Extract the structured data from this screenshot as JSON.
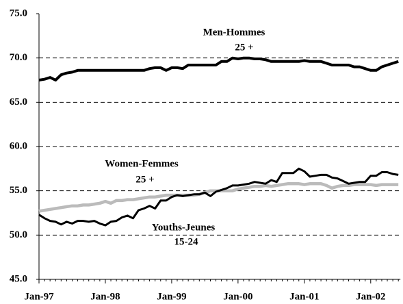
{
  "chart_data": {
    "type": "line",
    "categories": [
      "Jan-97",
      null,
      null,
      null,
      null,
      null,
      null,
      null,
      null,
      null,
      null,
      null,
      "Jan-98",
      null,
      null,
      null,
      null,
      null,
      null,
      null,
      null,
      null,
      null,
      null,
      "Jan-99",
      null,
      null,
      null,
      null,
      null,
      null,
      null,
      null,
      null,
      null,
      null,
      "Jan-00",
      null,
      null,
      null,
      null,
      null,
      null,
      null,
      null,
      null,
      null,
      null,
      "Jan-01",
      null,
      null,
      null,
      null,
      null,
      null,
      null,
      null,
      null,
      null,
      null,
      "Jan-02",
      null,
      null,
      null,
      null,
      null
    ],
    "series": [
      {
        "color": "#000000",
        "values": [
          67.5,
          67.6,
          67.8,
          67.5,
          68.1,
          68.3,
          68.4,
          68.6,
          68.6,
          68.6,
          68.6,
          68.6,
          68.6,
          68.6,
          68.6,
          68.6,
          68.6,
          68.6,
          68.6,
          68.6,
          68.8,
          68.9,
          68.9,
          68.6,
          68.9,
          68.9,
          68.8,
          69.2,
          69.2,
          69.2,
          69.2,
          69.2,
          69.2,
          69.6,
          69.6,
          70.0,
          69.9,
          70.0,
          70.0,
          69.9,
          69.9,
          69.8,
          69.6,
          69.6,
          69.6,
          69.6,
          69.6,
          69.6,
          69.7,
          69.6,
          69.6,
          69.6,
          69.4,
          69.2,
          69.2,
          69.2,
          69.2,
          69.0,
          69.0,
          68.8,
          68.6,
          68.6,
          69.0,
          69.2,
          69.4,
          69.6
        ]
      },
      {
        "color": "#000000",
        "values": [
          52.3,
          51.9,
          51.6,
          51.5,
          51.2,
          51.5,
          51.3,
          51.6,
          51.6,
          51.5,
          51.6,
          51.3,
          51.1,
          51.5,
          51.6,
          52.0,
          52.2,
          51.9,
          52.8,
          53.0,
          53.3,
          53.0,
          53.9,
          53.9,
          54.3,
          54.5,
          54.4,
          54.5,
          54.6,
          54.6,
          54.8,
          54.4,
          54.9,
          55.1,
          55.3,
          55.6,
          55.6,
          55.7,
          55.8,
          56.0,
          55.9,
          55.8,
          56.2,
          56.0,
          57.0,
          57.0,
          57.0,
          57.5,
          57.2,
          56.6,
          56.7,
          56.8,
          56.8,
          56.5,
          56.4,
          56.1,
          55.8,
          55.9,
          56.0,
          56.0,
          56.7,
          56.7,
          57.1,
          57.1,
          56.9,
          56.8
        ]
      },
      {
        "color": "#bbbbbb",
        "values": [
          52.7,
          52.8,
          52.9,
          53.0,
          53.1,
          53.2,
          53.3,
          53.3,
          53.4,
          53.4,
          53.5,
          53.6,
          53.8,
          53.6,
          53.9,
          53.9,
          54.0,
          54.0,
          54.1,
          54.2,
          54.3,
          54.3,
          54.4,
          54.5,
          54.5,
          54.5,
          54.5,
          54.5,
          54.5,
          54.6,
          54.8,
          55.0,
          55.0,
          55.0,
          55.0,
          55.0,
          55.2,
          55.3,
          55.4,
          55.5,
          55.5,
          55.6,
          55.5,
          55.6,
          55.7,
          55.8,
          55.8,
          55.8,
          55.7,
          55.8,
          55.8,
          55.8,
          55.6,
          55.3,
          55.5,
          55.6,
          55.6,
          55.7,
          55.7,
          55.7,
          55.7,
          55.6,
          55.7,
          55.7,
          55.7,
          55.7
        ]
      }
    ],
    "annotations": [
      "Men-Hommes",
      "25 +",
      "Women-Femmes",
      "25 +",
      "Youths-Jeunes",
      "15-24"
    ],
    "ylim": [
      45,
      75
    ],
    "yticks": [
      {
        "value": 45,
        "label": "45.0"
      },
      {
        "value": 50,
        "label": "50.0"
      },
      {
        "value": 55,
        "label": "55.0"
      },
      {
        "value": 60,
        "label": "60.0"
      },
      {
        "value": 65,
        "label": "65.0"
      },
      {
        "value": 70,
        "label": "70.0"
      },
      {
        "value": 75,
        "label": "75.0"
      }
    ],
    "grid": true
  }
}
